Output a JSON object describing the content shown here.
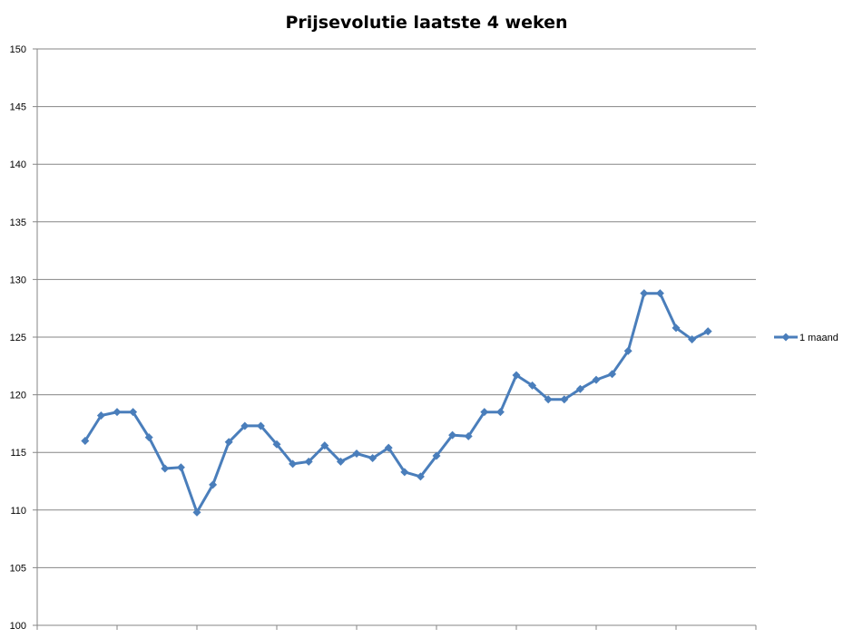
{
  "chart_data": {
    "type": "line",
    "title": "Prijsevolutie laatste 4 weken",
    "xlabel": "",
    "ylabel": "",
    "ylim": [
      100,
      150
    ],
    "y_ticks": [
      "100",
      "105",
      "110",
      "115",
      "120",
      "125",
      "130",
      "135",
      "140",
      "145",
      "150"
    ],
    "x_tick_labels": [],
    "grid": true,
    "legend_position": "right",
    "series": [
      {
        "name": "1 maand",
        "color": "#4a7ebb",
        "marker": "diamond",
        "values": [
          116.0,
          118.2,
          118.5,
          118.5,
          116.3,
          113.6,
          113.7,
          109.8,
          112.2,
          115.9,
          117.3,
          117.3,
          115.7,
          114.0,
          114.2,
          115.6,
          114.2,
          114.9,
          114.5,
          115.4,
          113.3,
          112.9,
          114.7,
          116.5,
          116.4,
          118.5,
          118.5,
          121.7,
          120.8,
          119.6,
          119.6,
          120.5,
          121.3,
          121.8,
          123.8,
          128.8,
          128.8,
          125.8,
          124.8,
          125.5
        ]
      }
    ]
  }
}
